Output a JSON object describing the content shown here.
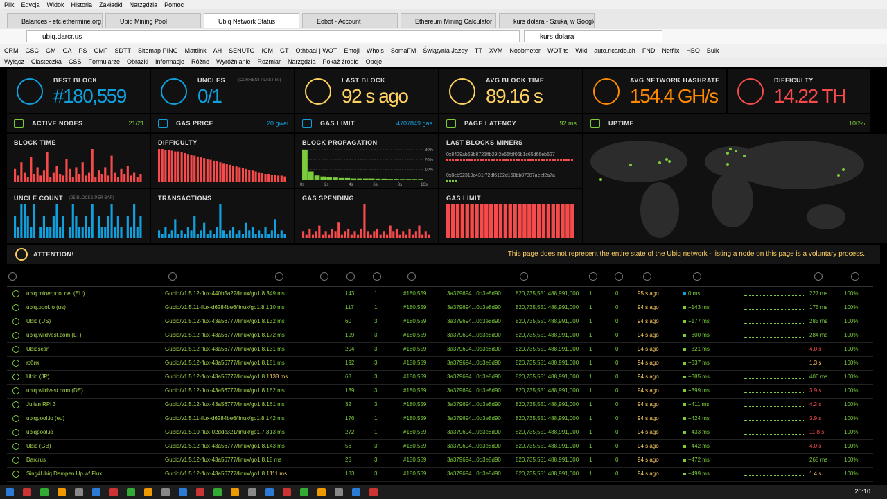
{
  "browser": {
    "menu": [
      "Plik",
      "Edycja",
      "Widok",
      "Historia",
      "Zakładki",
      "Narzędzia",
      "Pomoc"
    ],
    "tabs": [
      "Balances - etc.ethermine.org",
      "Ubiq Mining Pool",
      "Ubiq Network Status",
      "Eobot - Account",
      "Ethereum Mining Calculator",
      "kurs dolara - Szukaj w Google"
    ],
    "url": "ubiq.darcr.us",
    "search": "kurs dolara",
    "bookmarks": [
      "CRM",
      "GSC",
      "GM",
      "GA",
      "PS",
      "GMF",
      "SDTT",
      "Sitemap PING",
      "Mattlink",
      "AH",
      "SENUTO",
      "ICM",
      "GT",
      "Othbaal | WOT",
      "Emoji",
      "Whois",
      "SomaFM",
      "Świątynia Jazdy",
      "TT",
      "XVM",
      "Noobmeter",
      "WOT ts",
      "Wiki",
      "auto.ricardo.ch",
      "FND",
      "Netflix",
      "HBO",
      "Bulk"
    ],
    "toolbar": [
      "Wyłącz",
      "Ciasteczka",
      "CSS",
      "Formularze",
      "Obrazki",
      "Informacje",
      "Różne",
      "Wyróżnianie",
      "Rozmiar",
      "Narzędzia",
      "Pokaż źródło",
      "Opcje"
    ]
  },
  "stats": [
    {
      "label": "BEST BLOCK",
      "value": "#180,559",
      "color": "#10a0de"
    },
    {
      "label": "UNCLES",
      "sub": "(CURRENT / LAST 50)",
      "value": "0/1",
      "color": "#10a0de"
    },
    {
      "label": "LAST BLOCK",
      "value": "92 s ago",
      "color": "#ffd162"
    },
    {
      "label": "AVG BLOCK TIME",
      "value": "89.16 s",
      "color": "#ffd162"
    },
    {
      "label": "AVG NETWORK HASHRATE",
      "value": "154.4 GH/s",
      "color": "#ff8a00"
    },
    {
      "label": "DIFFICULTY",
      "value": "14.22 TH",
      "color": "#f74b4b"
    }
  ],
  "status": [
    {
      "label": "ACTIVE NODES",
      "value": "21/21",
      "color": "#7bcc3a"
    },
    {
      "label": "GAS PRICE",
      "value": "20 gwei",
      "color": "#10a0de"
    },
    {
      "label": "GAS LIMIT",
      "value": "4707849 gas",
      "color": "#10a0de"
    },
    {
      "label": "PAGE LATENCY",
      "value": "92 ms",
      "color": "#7bcc3a"
    },
    {
      "label": "UPTIME",
      "value": "100%",
      "color": "#7bcc3a"
    }
  ],
  "charts": [
    {
      "type": "bar",
      "title": "BLOCK TIME",
      "color": "#f74b4b",
      "values": [
        8,
        4,
        12,
        6,
        3,
        15,
        5,
        9,
        4,
        7,
        18,
        3,
        6,
        10,
        5,
        4,
        14,
        8,
        3,
        9,
        5,
        12,
        4,
        6,
        20,
        3,
        7,
        5,
        9,
        4,
        16,
        6,
        3,
        8,
        5,
        10,
        4,
        6,
        3,
        5
      ]
    },
    {
      "type": "bar",
      "title": "DIFFICULTY",
      "color": "#f74b4b",
      "values": [
        40,
        40,
        39,
        39,
        38,
        37,
        37,
        36,
        35,
        34,
        33,
        32,
        31,
        30,
        29,
        28,
        27,
        26,
        25,
        24,
        23,
        22,
        21,
        20,
        19,
        18,
        17,
        16,
        15,
        14,
        13,
        12,
        11,
        10,
        10,
        9,
        9,
        8,
        8,
        7
      ]
    },
    {
      "type": "histogram",
      "title": "BLOCK PROPAGATION",
      "color": "#7bcc3a",
      "bins": [
        0,
        0.5,
        1,
        1.5,
        2,
        2.5,
        3,
        3.5,
        4,
        4.5,
        5,
        5.5,
        6,
        6.5,
        7,
        7.5,
        8,
        8.5,
        9,
        9.5,
        10
      ],
      "values": [
        30,
        8,
        4,
        3,
        2.5,
        2,
        1.5,
        1.5,
        1,
        1,
        1,
        1,
        0.8,
        0.8,
        0.6,
        0.6,
        0.5,
        0.5,
        0.5,
        0.5
      ],
      "xlim": [
        0,
        10
      ],
      "ylim": [
        0,
        32
      ],
      "yticks": [
        {
          "value": 30,
          "label": "30%"
        },
        {
          "value": 20,
          "label": "20%"
        },
        {
          "value": 10,
          "label": "10%"
        }
      ],
      "xticks": [
        {
          "value": 0,
          "label": "0s"
        },
        {
          "value": 2,
          "label": "2s"
        },
        {
          "value": 4,
          "label": "4s"
        },
        {
          "value": 6,
          "label": "6s"
        },
        {
          "value": 8,
          "label": "8s"
        },
        {
          "value": 10,
          "label": "10s"
        }
      ]
    },
    {
      "type": "miners",
      "title": "LAST BLOCKS MINERS",
      "miners": [
        {
          "address": "0x8429ab69b8721ffb29f2e66fdf06b1c65d66eb527",
          "blocks": 46,
          "color": "#f74b4b"
        },
        {
          "address": "0x8eb92319c431f72df6182d150bb87887aeef2a7a",
          "blocks": 4,
          "color": "#7bcc3a"
        }
      ]
    },
    {
      "type": "bar",
      "title": "UNCLE COUNT",
      "subtitle": "(25 BLOCKS PER BAR)",
      "color": "#10a0de",
      "values": [
        2,
        1,
        3,
        3,
        2,
        1,
        3,
        0,
        1,
        2,
        1,
        1,
        2,
        3,
        1,
        2,
        0,
        1,
        3,
        2,
        1,
        1,
        2,
        1,
        3,
        0,
        2,
        1,
        1,
        2,
        3,
        1,
        2,
        1,
        0,
        2,
        1,
        3,
        1,
        2
      ]
    },
    {
      "type": "bar",
      "title": "TRANSACTIONS",
      "color": "#10a0de",
      "values": [
        2,
        1,
        3,
        1,
        2,
        5,
        1,
        2,
        1,
        3,
        2,
        6,
        1,
        2,
        4,
        1,
        2,
        1,
        3,
        9,
        2,
        1,
        2,
        3,
        1,
        2,
        1,
        4,
        2,
        3,
        1,
        2,
        1,
        3,
        1,
        2,
        5,
        1,
        2,
        1
      ]
    },
    {
      "type": "bar",
      "title": "GAS SPENDING",
      "color": "#f74b4b",
      "values": [
        2,
        1,
        3,
        1,
        2,
        4,
        1,
        2,
        1,
        3,
        2,
        5,
        1,
        2,
        3,
        1,
        2,
        1,
        3,
        11,
        2,
        1,
        2,
        3,
        1,
        2,
        1,
        4,
        2,
        3,
        1,
        2,
        1,
        3,
        1,
        2,
        4,
        1,
        2,
        1
      ]
    },
    {
      "type": "bar",
      "title": "GAS LIMIT",
      "color": "#f74b4b",
      "values": [
        4707849,
        4707849,
        4707849,
        4707849,
        4707849,
        4707849,
        4707849,
        4707849,
        4707849,
        4707849,
        4707849,
        4707849,
        4707849,
        4707849,
        4707849,
        4707849,
        4707849,
        4707849,
        4707849,
        4707849,
        4707849,
        4707849,
        4707849,
        4707849,
        4707849,
        4707849,
        4707849
      ]
    }
  ],
  "attention": {
    "label": "ATTENTION!",
    "message": "This page does not represent the entire state of the Ubiq network - listing a node on this page is a voluntary process."
  },
  "table": {
    "rows": [
      [
        "ubiq.minerpool.net (EU)",
        "Gubiq/v1.5.12-flux-440b5a22/linux/go1.8.3",
        "49 ms",
        "143",
        "1",
        "#180,559",
        "3a379694...0d3e8d90",
        "820,735,551,488,991,000",
        "1",
        "0",
        "95 s ago",
        "0 ms",
        "227 ms",
        "100%"
      ],
      [
        "ubiq.pool.io (us)",
        "Gubiq/v1.5.11-flux-d6284be6/linux/go1.8.1",
        "10 ms",
        "117",
        "1",
        "#180,559",
        "3a379694...0d3e8d90",
        "820,735,551,488,991,000",
        "1",
        "0",
        "94 s ago",
        "+143 ms",
        "175 ms",
        "100%"
      ],
      [
        "Ubiq (US)",
        "Gubiq/v1.5.12-flux-43a56777/linux/go1.8.1",
        "32 ms",
        "60",
        "3",
        "#180,559",
        "3a379694...0d3e8d90",
        "820,735,551,488,991,000",
        "1",
        "0",
        "94 s ago",
        "+177 ms",
        "285 ms",
        "100%"
      ],
      [
        "ubiq.wildvest.com (LT)",
        "Gubiq/v1.5.12-flux-43a56777/linux/go1.8.1",
        "72 ms",
        "199",
        "3",
        "#180,559",
        "3a379694...0d3e8d90",
        "820,735,551,488,991,000",
        "1",
        "0",
        "94 s ago",
        "+300 ms",
        "284 ms",
        "100%"
      ],
      [
        "Ubiqscan",
        "Gubiq/v1.5.12-flux-43a56777/linux/go1.8.1",
        "31 ms",
        "204",
        "3",
        "#180,559",
        "3a379694...0d3e8d90",
        "820,735,551,488,991,000",
        "1",
        "0",
        "94 s ago",
        "+321 ms",
        "4.0 s",
        "100%"
      ],
      [
        "юбик",
        "Gubiq/v1.5.12-flux-43a56777/linux/go1.8.1",
        "51 ms",
        "192",
        "3",
        "#180,559",
        "3a379694...0d3e8d90",
        "820,735,551,488,991,000",
        "1",
        "0",
        "94 s ago",
        "+337 ms",
        "1.3 s",
        "100%"
      ],
      [
        "Ubiq (JP)",
        "Gubiq/v1.5.12-flux-43a56777/linux/go1.8.1",
        "138 ms",
        "68",
        "3",
        "#180,559",
        "3a379694...0d3e8d90",
        "820,735,551,488,991,000",
        "1",
        "0",
        "94 s ago",
        "+385 ms",
        "406 ms",
        "100%"
      ],
      [
        "ubiq.wildvest.com (DE)",
        "Gubiq/v1.5.12-flux-43a56777/linux/go1.8.1",
        "62 ms",
        "139",
        "3",
        "#180,559",
        "3a379694...0d3e8d90",
        "820,735,551,488,991,000",
        "1",
        "0",
        "94 s ago",
        "+399 ms",
        "3.9 s",
        "100%"
      ],
      [
        "Julian RPi 3",
        "Gubiq/v1.5.12-flux-43a56777/linux/go1.8.1",
        "61 ms",
        "32",
        "3",
        "#180,559",
        "3a379694...0d3e8d90",
        "820,735,551,488,991,000",
        "1",
        "0",
        "94 s ago",
        "+411 ms",
        "4.2 s",
        "100%"
      ],
      [
        "ubiqpool.io (eu)",
        "Gubiq/v1.5.11-flux-d6284be6/linux/go1.8.1",
        "42 ms",
        "176",
        "1",
        "#180,559",
        "3a379694...0d3e8d90",
        "820,735,551,488,991,000",
        "1",
        "0",
        "94 s ago",
        "+424 ms",
        "3.9 s",
        "100%"
      ],
      [
        "ubiqpool.io",
        "Gubiq/v1.5.10-flux-02ddc321/linux/go1.7.3",
        "13 ms",
        "272",
        "1",
        "#180,559",
        "3a379694...0d3e8d90",
        "820,735,551,488,991,000",
        "1",
        "0",
        "94 s ago",
        "+433 ms",
        "11.8 s",
        "100%"
      ],
      [
        "Ubiq (GB)",
        "Gubiq/v1.5.12-flux-43a56777/linux/go1.8.1",
        "43 ms",
        "56",
        "3",
        "#180,559",
        "3a379694...0d3e8d90",
        "820,735,551,488,991,000",
        "1",
        "0",
        "94 s ago",
        "+442 ms",
        "4.0 s",
        "100%"
      ],
      [
        "Darcrus",
        "Gubiq/v1.5.12-flux-43a56777/linux/go1.8.1",
        "8 ms",
        "25",
        "3",
        "#180,559",
        "3a379694...0d3e8d90",
        "820,735,551,488,991,000",
        "1",
        "0",
        "94 s ago",
        "+472 ms",
        "268 ms",
        "100%"
      ],
      [
        "Sing4Ubiq Dampen Up w/ Flux",
        "Gubiq/v1.5.12-flux-43a56777/linux/go1.8.1",
        "111 ms",
        "183",
        "3",
        "#180,559",
        "3a379694...0d3e8d90",
        "820,735,551,488,991,000",
        "1",
        "0",
        "94 s ago",
        "+499 ms",
        "1.4 s",
        "100%"
      ]
    ]
  },
  "taskbar": {
    "clock": "20:10"
  }
}
